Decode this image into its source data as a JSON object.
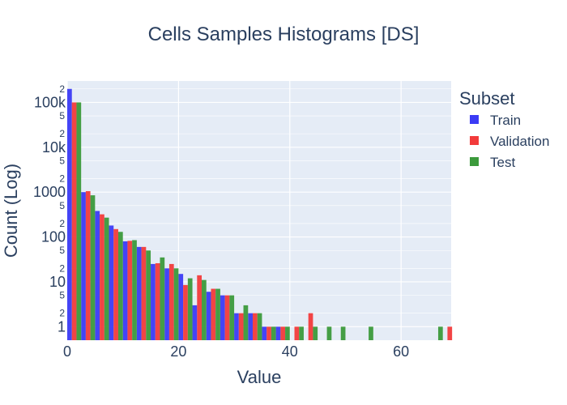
{
  "chart_data": {
    "type": "bar",
    "title": "Cells Samples Histograms [DS]",
    "xlabel": "Value",
    "ylabel": "Count (Log)",
    "y_scale": "log",
    "xlim": [
      0,
      69
    ],
    "ylim": [
      0.5,
      300000
    ],
    "grid": true,
    "legend_title": "Subset",
    "legend_position": "right",
    "x_ticks": [
      "0",
      "20",
      "40",
      "60"
    ],
    "y_major_ticks": [
      {
        "value": 1,
        "label": "1"
      },
      {
        "value": 10,
        "label": "10"
      },
      {
        "value": 100,
        "label": "100"
      },
      {
        "value": 1000,
        "label": "1000"
      },
      {
        "value": 10000,
        "label": "10k"
      },
      {
        "value": 100000,
        "label": "100k"
      }
    ],
    "y_minor_ticks": [
      {
        "value": 2,
        "label": "2"
      },
      {
        "value": 5,
        "label": "5"
      },
      {
        "value": 20,
        "label": "2"
      },
      {
        "value": 50,
        "label": "5"
      },
      {
        "value": 200,
        "label": "2"
      },
      {
        "value": 500,
        "label": "5"
      },
      {
        "value": 2000,
        "label": "2"
      },
      {
        "value": 5000,
        "label": "5"
      },
      {
        "value": 20000,
        "label": "2"
      },
      {
        "value": 50000,
        "label": "5"
      },
      {
        "value": 200000,
        "label": "2"
      }
    ],
    "bin_width": 2.5,
    "series": [
      {
        "name": "Train",
        "color": "#3b3bf5",
        "points": [
          [
            0,
            200000
          ],
          [
            2.5,
            1000
          ],
          [
            5,
            380
          ],
          [
            7.5,
            180
          ],
          [
            10,
            80
          ],
          [
            12.5,
            60
          ],
          [
            15,
            25
          ],
          [
            17.5,
            20
          ],
          [
            20,
            15
          ],
          [
            22.5,
            3
          ],
          [
            25,
            6
          ],
          [
            27.5,
            5
          ],
          [
            30,
            2
          ],
          [
            32.5,
            2
          ],
          [
            35,
            1
          ],
          [
            37.5,
            1
          ]
        ]
      },
      {
        "name": "Validation",
        "color": "#f23b3b",
        "points": [
          [
            0,
            100000
          ],
          [
            2.5,
            1050
          ],
          [
            5,
            320
          ],
          [
            7.5,
            150
          ],
          [
            10,
            82
          ],
          [
            12.5,
            60
          ],
          [
            15,
            26
          ],
          [
            17.5,
            25
          ],
          [
            20,
            8.5
          ],
          [
            22.5,
            14
          ],
          [
            25,
            7
          ],
          [
            27.5,
            5
          ],
          [
            30,
            2
          ],
          [
            32.5,
            2
          ],
          [
            35,
            1
          ],
          [
            37.5,
            1
          ],
          [
            40,
            1
          ],
          [
            42.5,
            2
          ],
          [
            67.5,
            1
          ]
        ]
      },
      {
        "name": "Test",
        "color": "#3b9a3b",
        "points": [
          [
            0,
            100000
          ],
          [
            2.5,
            850
          ],
          [
            5,
            270
          ],
          [
            7.5,
            130
          ],
          [
            10,
            85
          ],
          [
            12.5,
            50
          ],
          [
            15,
            35
          ],
          [
            17.5,
            20
          ],
          [
            20,
            12
          ],
          [
            22.5,
            11
          ],
          [
            25,
            7
          ],
          [
            27.5,
            5
          ],
          [
            30,
            3
          ],
          [
            32.5,
            2
          ],
          [
            35,
            1
          ],
          [
            37.5,
            1
          ],
          [
            40,
            1
          ],
          [
            42.5,
            1
          ],
          [
            45,
            1
          ],
          [
            47.5,
            1
          ],
          [
            52.5,
            1
          ],
          [
            65,
            1
          ]
        ]
      }
    ]
  }
}
